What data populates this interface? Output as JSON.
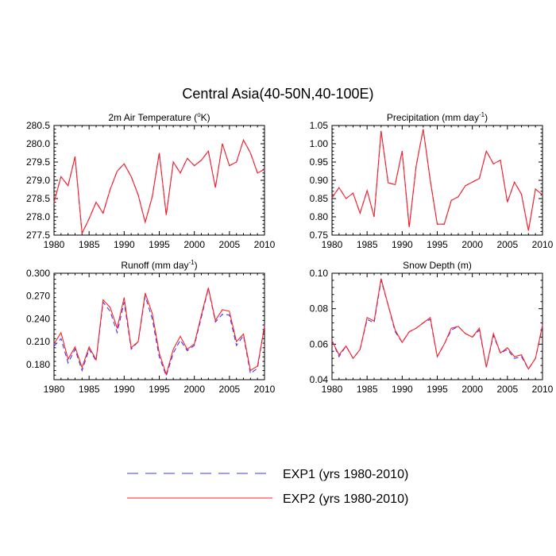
{
  "figure": {
    "title": "Central Asia(40-50N,40-100E)",
    "legend": {
      "position": "bottom-center",
      "entries": [
        {
          "label": "EXP1 (yrs 1980-2010)",
          "color": "#3a3aff",
          "dash": "dashed"
        },
        {
          "label": "EXP2 (yrs 1980-2010)",
          "color": "#ff2020",
          "dash": "solid"
        }
      ]
    }
  },
  "chart_data": [
    {
      "type": "line",
      "title_main": "2m Air Temperature (",
      "title_sup": "o",
      "title_tail": "K)",
      "xlim": [
        1980,
        2010
      ],
      "ylim": [
        277.5,
        280.5
      ],
      "xticks": [
        1980,
        1985,
        1990,
        1995,
        2000,
        2005,
        2010
      ],
      "yticks": [
        277.5,
        278.0,
        278.5,
        279.0,
        279.5,
        280.0,
        280.5
      ],
      "ytick_labels": [
        "277.5",
        "278.0",
        "278.5",
        "279.0",
        "279.5",
        "280.0",
        "280.5"
      ],
      "x": [
        1980,
        1981,
        1982,
        1983,
        1984,
        1985,
        1986,
        1987,
        1988,
        1989,
        1990,
        1991,
        1992,
        1993,
        1994,
        1995,
        1996,
        1997,
        1998,
        1999,
        2000,
        2001,
        2002,
        2003,
        2004,
        2005,
        2006,
        2007,
        2008,
        2009,
        2010
      ],
      "series": [
        {
          "name": "EXP1 (yrs 1980-2010)",
          "values": [
            278.4,
            279.1,
            278.85,
            279.65,
            277.55,
            277.95,
            278.4,
            278.1,
            278.75,
            279.25,
            279.45,
            279.1,
            278.6,
            277.85,
            278.55,
            279.75,
            278.05,
            279.5,
            279.2,
            279.6,
            279.4,
            279.55,
            279.8,
            278.8,
            280.0,
            279.4,
            279.5,
            280.1,
            279.75,
            279.2,
            279.3
          ]
        },
        {
          "name": "EXP2 (yrs 1980-2010)",
          "values": [
            278.4,
            279.1,
            278.85,
            279.65,
            277.55,
            277.95,
            278.4,
            278.1,
            278.75,
            279.25,
            279.45,
            279.1,
            278.6,
            277.85,
            278.55,
            279.75,
            278.05,
            279.5,
            279.2,
            279.6,
            279.4,
            279.55,
            279.8,
            278.8,
            280.0,
            279.4,
            279.5,
            280.1,
            279.75,
            279.2,
            279.3
          ]
        }
      ]
    },
    {
      "type": "line",
      "title_main": "Precipitation (mm day",
      "title_sup": "-1",
      "title_tail": ")",
      "xlim": [
        1980,
        2010
      ],
      "ylim": [
        0.75,
        1.05
      ],
      "xticks": [
        1980,
        1985,
        1990,
        1995,
        2000,
        2005,
        2010
      ],
      "yticks": [
        0.75,
        0.8,
        0.85,
        0.9,
        0.95,
        1.0,
        1.05
      ],
      "ytick_labels": [
        "0.75",
        "0.80",
        "0.85",
        "0.90",
        "0.95",
        "1.00",
        "1.05"
      ],
      "x": [
        1980,
        1981,
        1982,
        1983,
        1984,
        1985,
        1986,
        1987,
        1988,
        1989,
        1990,
        1991,
        1992,
        1993,
        1994,
        1995,
        1996,
        1997,
        1998,
        1999,
        2000,
        2001,
        2002,
        2003,
        2004,
        2005,
        2006,
        2007,
        2008,
        2009,
        2010
      ],
      "series": [
        {
          "name": "EXP1 (yrs 1980-2010)",
          "values": [
            0.852,
            0.88,
            0.85,
            0.865,
            0.81,
            0.872,
            0.8,
            1.035,
            0.893,
            0.888,
            0.98,
            0.77,
            0.94,
            1.04,
            0.9,
            0.78,
            0.78,
            0.845,
            0.855,
            0.885,
            0.895,
            0.905,
            0.98,
            0.945,
            0.955,
            0.84,
            0.895,
            0.862,
            0.762,
            0.876,
            0.86
          ]
        },
        {
          "name": "EXP2 (yrs 1980-2010)",
          "values": [
            0.852,
            0.88,
            0.85,
            0.865,
            0.81,
            0.872,
            0.8,
            1.035,
            0.893,
            0.888,
            0.98,
            0.772,
            0.94,
            1.04,
            0.9,
            0.78,
            0.78,
            0.845,
            0.855,
            0.885,
            0.895,
            0.905,
            0.98,
            0.945,
            0.955,
            0.84,
            0.895,
            0.862,
            0.762,
            0.876,
            0.86
          ]
        }
      ]
    },
    {
      "type": "line",
      "title_main": "Runoff (mm day",
      "title_sup": "-1",
      "title_tail": ")",
      "xlim": [
        1980,
        2010
      ],
      "ylim": [
        0.16,
        0.3
      ],
      "xticks": [
        1980,
        1985,
        1990,
        1995,
        2000,
        2005,
        2010
      ],
      "yticks": [
        0.18,
        0.21,
        0.24,
        0.27,
        0.3
      ],
      "ytick_labels": [
        "0.180",
        "0.210",
        "0.240",
        "0.270",
        "0.300"
      ],
      "x": [
        1980,
        1981,
        1982,
        1983,
        1984,
        1985,
        1986,
        1987,
        1988,
        1989,
        1990,
        1991,
        1992,
        1993,
        1994,
        1995,
        1996,
        1997,
        1998,
        1999,
        2000,
        2001,
        2002,
        2003,
        2004,
        2005,
        2006,
        2007,
        2008,
        2009,
        2010
      ],
      "series": [
        {
          "name": "EXP1 (yrs 1980-2010)",
          "values": [
            0.204,
            0.214,
            0.182,
            0.2,
            0.172,
            0.2,
            0.185,
            0.262,
            0.25,
            0.222,
            0.262,
            0.2,
            0.21,
            0.27,
            0.24,
            0.19,
            0.165,
            0.195,
            0.212,
            0.198,
            0.205,
            0.242,
            0.28,
            0.236,
            0.246,
            0.245,
            0.205,
            0.218,
            0.168,
            0.175,
            0.232
          ]
        },
        {
          "name": "EXP2 (yrs 1980-2010)",
          "values": [
            0.207,
            0.222,
            0.187,
            0.203,
            0.176,
            0.203,
            0.186,
            0.265,
            0.255,
            0.228,
            0.268,
            0.202,
            0.21,
            0.274,
            0.247,
            0.195,
            0.167,
            0.2,
            0.217,
            0.2,
            0.207,
            0.245,
            0.281,
            0.238,
            0.252,
            0.25,
            0.21,
            0.22,
            0.172,
            0.178,
            0.23
          ]
        }
      ]
    },
    {
      "type": "line",
      "title_main": "Snow Depth (m)",
      "title_sup": "",
      "title_tail": "",
      "xlim": [
        1980,
        2010
      ],
      "ylim": [
        0.04,
        0.1
      ],
      "xticks": [
        1980,
        1985,
        1990,
        1995,
        2000,
        2005,
        2010
      ],
      "yticks": [
        0.04,
        0.06,
        0.08,
        0.1
      ],
      "ytick_labels": [
        "0.04",
        "0.06",
        "0.08",
        "0.10"
      ],
      "x": [
        1980,
        1981,
        1982,
        1983,
        1984,
        1985,
        1986,
        1987,
        1988,
        1989,
        1990,
        1991,
        1992,
        1993,
        1994,
        1995,
        1996,
        1997,
        1998,
        1999,
        2000,
        2001,
        2002,
        2003,
        2004,
        2005,
        2006,
        2007,
        2008,
        2009,
        2010
      ],
      "series": [
        {
          "name": "EXP1 (yrs 1980-2010)",
          "values": [
            0.062,
            0.053,
            0.059,
            0.052,
            0.057,
            0.074,
            0.072,
            0.096,
            0.082,
            0.067,
            0.061,
            0.067,
            0.069,
            0.072,
            0.074,
            0.053,
            0.06,
            0.068,
            0.07,
            0.066,
            0.064,
            0.068,
            0.047,
            0.065,
            0.055,
            0.057,
            0.052,
            0.053,
            0.046,
            0.052,
            0.07
          ]
        },
        {
          "name": "EXP2 (yrs 1980-2010)",
          "values": [
            0.062,
            0.054,
            0.059,
            0.052,
            0.057,
            0.075,
            0.073,
            0.097,
            0.082,
            0.068,
            0.061,
            0.067,
            0.069,
            0.072,
            0.075,
            0.053,
            0.06,
            0.069,
            0.07,
            0.066,
            0.064,
            0.069,
            0.047,
            0.066,
            0.055,
            0.058,
            0.053,
            0.054,
            0.046,
            0.052,
            0.071
          ]
        }
      ]
    }
  ]
}
